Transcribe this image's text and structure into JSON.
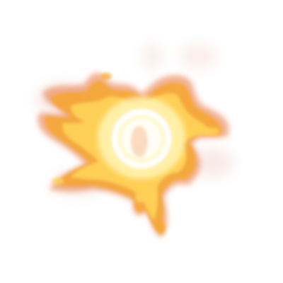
{
  "effect": {
    "name": "fire-burst",
    "colors": {
      "background": "#ffffff",
      "core": "#fffef2",
      "inner_glow": "#fff3b0",
      "flame_yellow": "#ffd75a",
      "flame_orange": "#f5a623",
      "flame_edge": "#e8733a",
      "smoke": "#f3d9d2"
    }
  }
}
